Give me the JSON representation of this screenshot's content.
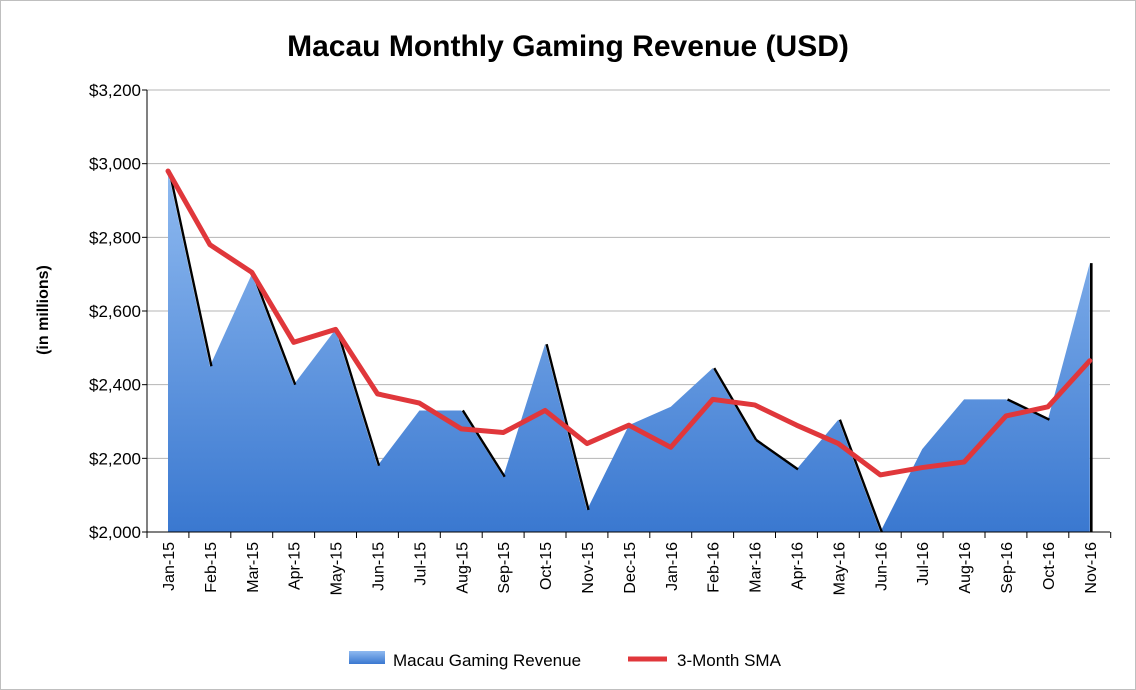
{
  "chart_data": {
    "type": "area",
    "title": "Macau Monthly Gaming Revenue (USD)",
    "ylabel": "(in millions)",
    "xlabel": "",
    "ylim": [
      2000,
      3200
    ],
    "yticks": [
      2000,
      2200,
      2400,
      2600,
      2800,
      3000,
      3200
    ],
    "ytick_labels": [
      "$2,000",
      "$2,200",
      "$2,400",
      "$2,600",
      "$2,800",
      "$3,000",
      "$3,200"
    ],
    "grid": true,
    "legend_position": "bottom",
    "categories": [
      "Jan-15",
      "Feb-15",
      "Mar-15",
      "Apr-15",
      "May-15",
      "Jun-15",
      "Jul-15",
      "Aug-15",
      "Sep-15",
      "Oct-15",
      "Nov-15",
      "Dec-15",
      "Jan-16",
      "Feb-16",
      "Mar-16",
      "Apr-16",
      "May-16",
      "Jun-16",
      "Jul-16",
      "Aug-16",
      "Sep-16",
      "Oct-16",
      "Nov-16"
    ],
    "series": [
      {
        "name": "Macau Gaming Revenue",
        "type": "area",
        "color": "#4a86d8",
        "values": [
          2980,
          2450,
          2700,
          2400,
          2550,
          2180,
          2330,
          2330,
          2150,
          2510,
          2060,
          2290,
          2340,
          2445,
          2250,
          2170,
          2305,
          1990,
          2225,
          2360,
          2360,
          2305,
          2730
        ]
      },
      {
        "name": "3-Month SMA",
        "type": "line",
        "color": "#e0373b",
        "values": [
          2980,
          2780,
          2705,
          2515,
          2550,
          2375,
          2350,
          2280,
          2270,
          2330,
          2240,
          2290,
          2230,
          2360,
          2345,
          2290,
          2240,
          2155,
          2175,
          2190,
          2315,
          2340,
          2465
        ]
      }
    ]
  }
}
